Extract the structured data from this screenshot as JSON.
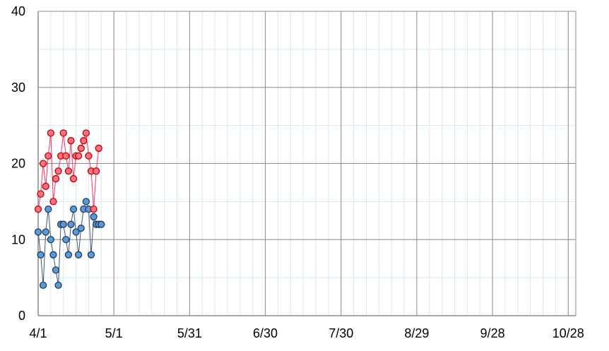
{
  "chart_data": {
    "type": "line",
    "title": "",
    "xlabel": "",
    "ylabel": "",
    "ylim": [
      0,
      40
    ],
    "yticks": [
      0,
      10,
      20,
      30,
      40
    ],
    "xlim": [
      "4/1",
      "10/31"
    ],
    "xticks": [
      "4/1",
      "5/1",
      "5/31",
      "6/30",
      "7/30",
      "8/29",
      "9/28",
      "10/28"
    ],
    "grid": true,
    "markers": "circle",
    "series": [
      {
        "color": "#ff3366",
        "marker_fill": "#ff7080",
        "marker_edge": "#c00000",
        "x": [
          "4/1",
          "4/2",
          "4/3",
          "4/4",
          "4/5",
          "4/6",
          "4/7",
          "4/8",
          "4/9",
          "4/10",
          "4/11",
          "4/12",
          "4/13",
          "4/14",
          "4/15",
          "4/16",
          "4/17",
          "4/18",
          "4/19",
          "4/20",
          "4/21",
          "4/22",
          "4/23",
          "4/24",
          "4/25"
        ],
        "values": [
          14,
          16,
          20,
          17,
          21,
          24,
          15,
          18,
          19,
          21,
          24,
          21,
          19,
          23,
          18,
          21,
          21,
          22,
          23,
          24,
          21,
          19,
          14,
          19,
          22
        ]
      },
      {
        "color": "#44546a",
        "marker_fill": "#5b9bd5",
        "marker_edge": "#1f3864",
        "x": [
          "4/1",
          "4/2",
          "4/3",
          "4/4",
          "4/5",
          "4/6",
          "4/7",
          "4/8",
          "4/9",
          "4/10",
          "4/11",
          "4/12",
          "4/13",
          "4/14",
          "4/15",
          "4/16",
          "4/17",
          "4/18",
          "4/19",
          "4/20",
          "4/21",
          "4/22",
          "4/23",
          "4/24",
          "4/25",
          "4/26"
        ],
        "values": [
          11,
          8,
          4,
          11,
          14,
          10,
          8,
          6,
          4,
          12,
          12,
          10,
          8,
          12,
          14,
          11,
          8,
          11.5,
          14,
          15,
          14,
          8,
          13,
          12,
          12,
          12
        ]
      }
    ]
  }
}
